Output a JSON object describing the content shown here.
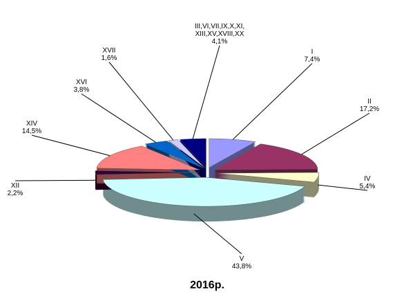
{
  "chart_data": {
    "type": "pie",
    "title": "2016р.",
    "categories": [
      "I",
      "II",
      "IV",
      "V",
      "XII",
      "XIV",
      "XVI",
      "XVII",
      "III,VI,VII,IX,X,XI,\nXIII,XV,XVIII,XX"
    ],
    "values": [
      7.4,
      17.2,
      5.4,
      43.8,
      2.2,
      14.5,
      3.8,
      1.6,
      4.1
    ],
    "value_labels": [
      "7,4%",
      "17,2%",
      "5,4%",
      "43,8%",
      "2,2%",
      "14,5%",
      "3,8%",
      "1,6%",
      "4,1%"
    ],
    "colors": [
      "#9999ff",
      "#993366",
      "#ffffcc",
      "#ccffff",
      "#330033",
      "#ff8080",
      "#0066cc",
      "#ccccff",
      "#000080"
    ]
  }
}
